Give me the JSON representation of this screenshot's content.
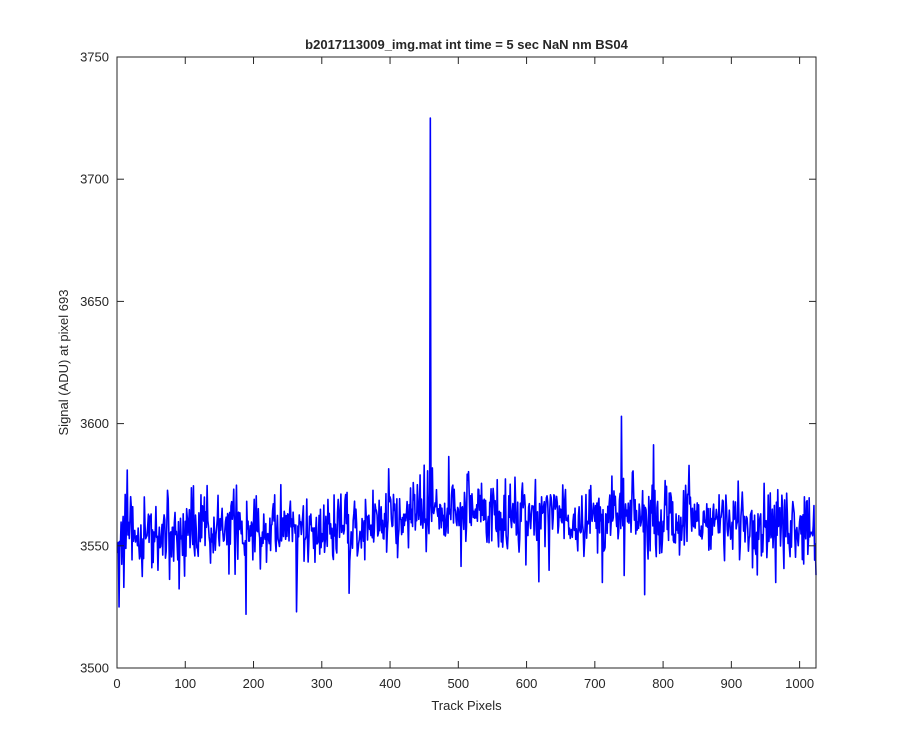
{
  "chart_data": {
    "type": "line",
    "title": "b2017113009_img.mat int time = 5 sec  NaN nm BS04",
    "xlabel": "Track Pixels",
    "ylabel": "Signal (ADU) at pixel 693",
    "xlim": [
      0,
      1024
    ],
    "ylim": [
      3500,
      3750
    ],
    "xticks": [
      0,
      100,
      200,
      300,
      400,
      500,
      600,
      700,
      800,
      900,
      1000
    ],
    "yticks": [
      3500,
      3550,
      3600,
      3650,
      3700,
      3750
    ],
    "grid": false,
    "line_color": "#0000ff",
    "x_range": [
      1,
      1024
    ],
    "key_points": [
      [
        1,
        3547
      ],
      [
        3,
        3525
      ],
      [
        5,
        3550
      ],
      [
        10,
        3533
      ],
      [
        12,
        3571
      ],
      [
        15,
        3581
      ],
      [
        40,
        3570
      ],
      [
        60,
        3540
      ],
      [
        100,
        3560
      ],
      [
        150,
        3550
      ],
      [
        189,
        3522
      ],
      [
        200,
        3560
      ],
      [
        240,
        3575
      ],
      [
        263,
        3523
      ],
      [
        300,
        3555
      ],
      [
        350,
        3565
      ],
      [
        400,
        3570
      ],
      [
        440,
        3575
      ],
      [
        450,
        3583
      ],
      [
        457,
        3555
      ],
      [
        459,
        3725
      ],
      [
        461,
        3560
      ],
      [
        465,
        3565
      ],
      [
        500,
        3565
      ],
      [
        550,
        3568
      ],
      [
        600,
        3560
      ],
      [
        633,
        3540
      ],
      [
        650,
        3565
      ],
      [
        700,
        3560
      ],
      [
        711,
        3535
      ],
      [
        739,
        3603
      ],
      [
        755,
        3580
      ],
      [
        773,
        3530
      ],
      [
        800,
        3560
      ],
      [
        900,
        3555
      ],
      [
        965,
        3535
      ],
      [
        1000,
        3560
      ],
      [
        1017,
        3555
      ],
      [
        1024,
        3538
      ]
    ]
  }
}
